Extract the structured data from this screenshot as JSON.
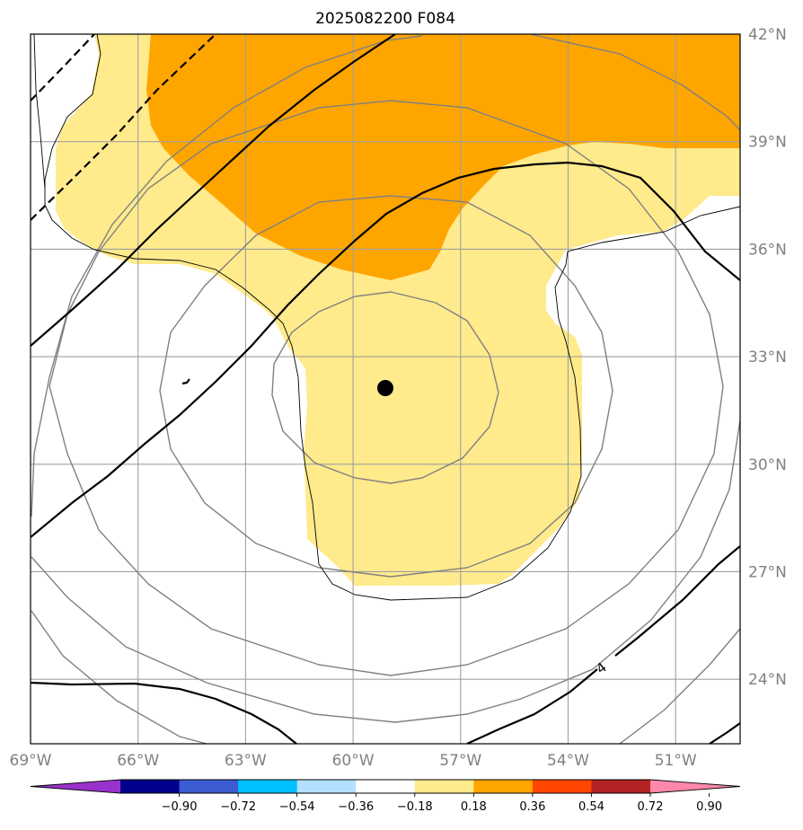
{
  "title": "2025082200 F084",
  "map": {
    "lon_range": [
      -69,
      -49.2
    ],
    "lat_range": [
      22.2,
      42
    ],
    "lon_ticks": [
      {
        "value": -69,
        "label": "69°W"
      },
      {
        "value": -66,
        "label": "66°W"
      },
      {
        "value": -63,
        "label": "63°W"
      },
      {
        "value": -60,
        "label": "60°W"
      },
      {
        "value": -57,
        "label": "57°W"
      },
      {
        "value": -54,
        "label": "54°W"
      },
      {
        "value": -51,
        "label": "51°W"
      }
    ],
    "lat_ticks": [
      {
        "value": 42,
        "label": "42°N"
      },
      {
        "value": 39,
        "label": "39°N"
      },
      {
        "value": 36,
        "label": "36°N"
      },
      {
        "value": 33,
        "label": "33°N"
      },
      {
        "value": 30,
        "label": "30°N"
      },
      {
        "value": 27,
        "label": "27°N"
      },
      {
        "value": 24,
        "label": "24°N"
      }
    ],
    "grid": true,
    "storm_center": {
      "lon": -59.1,
      "lat": 32.1
    },
    "contour_label": "4"
  },
  "colorbar": {
    "extend": "both",
    "colors": [
      "#9932cc",
      "#00008b",
      "#3b5bd1",
      "#00bfff",
      "#b3e0ff",
      "#ffffff",
      "#ffea8c",
      "#ffa500",
      "#ff4500",
      "#b22222",
      "#ff88aa"
    ],
    "ticks": [
      "−0.90",
      "−0.72",
      "−0.54",
      "−0.36",
      "−0.18",
      "0.18",
      "0.36",
      "0.54",
      "0.72",
      "0.90"
    ]
  }
}
